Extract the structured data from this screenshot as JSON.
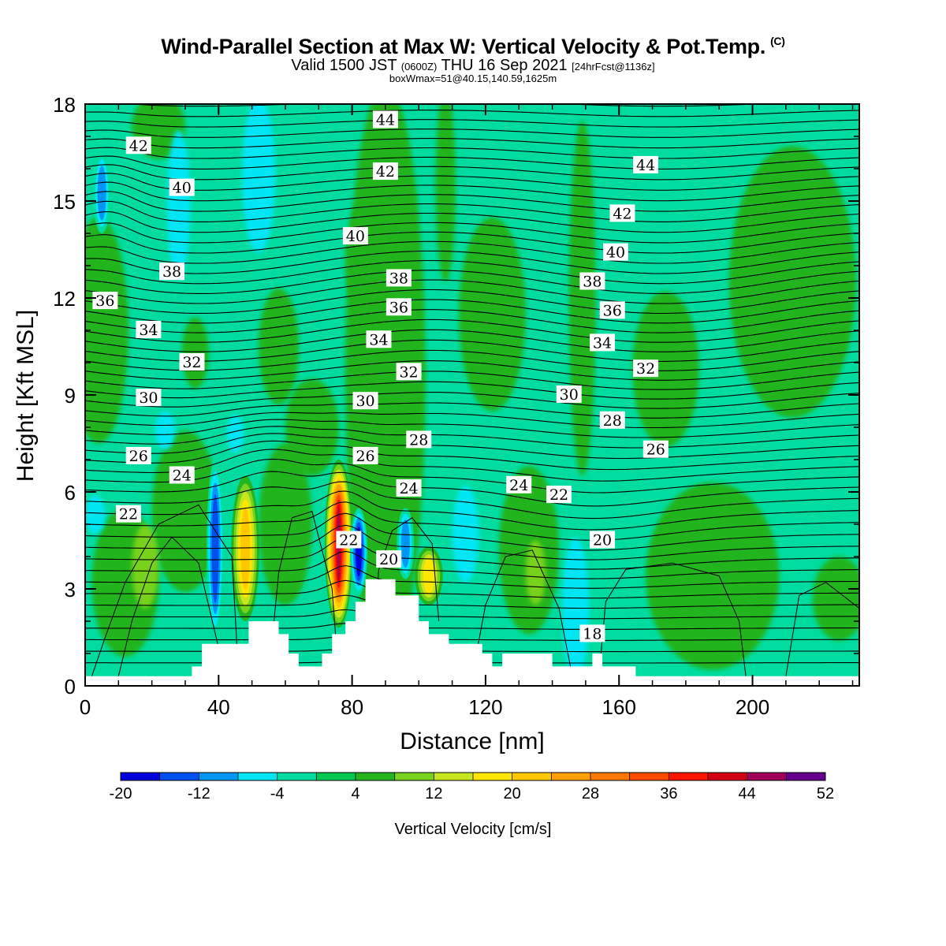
{
  "title": "Wind-Parallel Section at Max W: Vertical Velocity & Pot.Temp.",
  "copyright_mark": "(C)",
  "subtitle": {
    "valid": "Valid 1500 JST",
    "utc": "(0600Z)",
    "date": "THU 16 Sep 2021",
    "forecast": "[24hrFcst@1136z]"
  },
  "box_info": "boxWmax=51@40.15,140.59,1625m",
  "chart_data": {
    "type": "heatmap",
    "xlabel": "Distance [nm]",
    "ylabel": "Height [Kft MSL]",
    "xlim": [
      0,
      232
    ],
    "ylim": [
      0,
      18
    ],
    "x_ticks": [
      "0",
      "40",
      "80",
      "120",
      "160",
      "200"
    ],
    "y_ticks": [
      "0",
      "3",
      "6",
      "9",
      "12",
      "15",
      "18"
    ],
    "colorbar": {
      "label": "Vertical Velocity [cm/s]",
      "tick_labels": [
        "-20",
        "-12",
        "-4",
        "4",
        "12",
        "20",
        "28",
        "36",
        "44",
        "52"
      ],
      "min": -20,
      "max": 52,
      "step": 4,
      "colors": [
        "#0000dd",
        "#0050f0",
        "#0096f5",
        "#00e6f5",
        "#00dca0",
        "#00c850",
        "#23b41e",
        "#78d21e",
        "#c8e61e",
        "#ffe600",
        "#ffc800",
        "#ffa000",
        "#ff7800",
        "#ff4b00",
        "#ff1400",
        "#d20014",
        "#a0005a",
        "#64008c"
      ]
    },
    "background_level": "0 to 4 cm/s (#00dca0)",
    "updrafts": [
      {
        "x": 48,
        "z_low": 2.0,
        "z_high": 6.5,
        "peak_cm_s": 22
      },
      {
        "x": 76,
        "z_low": 1.8,
        "z_high": 7.0,
        "peak_cm_s": 44
      },
      {
        "x": 103,
        "z_low": 2.5,
        "z_high": 4.3,
        "peak_cm_s": 18
      }
    ],
    "downdrafts": [
      {
        "x": 39,
        "z_low": 1.5,
        "z_high": 7.0,
        "min_cm_s": -16
      },
      {
        "x": 82,
        "z_low": 2.8,
        "z_high": 5.5,
        "min_cm_s": -20
      },
      {
        "x": 96,
        "z_low": 3.3,
        "z_high": 5.5,
        "min_cm_s": -12
      },
      {
        "x": 5,
        "z_low": 14.0,
        "z_high": 16.5,
        "min_cm_s": -12
      }
    ],
    "theta_contours": {
      "units": "deg C",
      "levels": [
        18,
        20,
        22,
        24,
        26,
        28,
        30,
        32,
        34,
        36,
        38,
        40,
        42,
        44
      ],
      "labels": [
        {
          "text": "42",
          "x": 16,
          "z": 16.7
        },
        {
          "text": "40",
          "x": 29,
          "z": 15.4
        },
        {
          "text": "38",
          "x": 26,
          "z": 12.8
        },
        {
          "text": "36",
          "x": 6,
          "z": 11.9
        },
        {
          "text": "34",
          "x": 19,
          "z": 11.0
        },
        {
          "text": "32",
          "x": 32,
          "z": 10.0
        },
        {
          "text": "30",
          "x": 19,
          "z": 8.9
        },
        {
          "text": "26",
          "x": 16,
          "z": 7.1
        },
        {
          "text": "24",
          "x": 29,
          "z": 6.5
        },
        {
          "text": "22",
          "x": 13,
          "z": 5.3
        },
        {
          "text": "44",
          "x": 90,
          "z": 17.5
        },
        {
          "text": "42",
          "x": 90,
          "z": 15.9
        },
        {
          "text": "40",
          "x": 81,
          "z": 13.9
        },
        {
          "text": "38",
          "x": 94,
          "z": 12.6
        },
        {
          "text": "36",
          "x": 94,
          "z": 11.7
        },
        {
          "text": "34",
          "x": 88,
          "z": 10.7
        },
        {
          "text": "32",
          "x": 97,
          "z": 9.7
        },
        {
          "text": "30",
          "x": 84,
          "z": 8.8
        },
        {
          "text": "28",
          "x": 100,
          "z": 7.6
        },
        {
          "text": "26",
          "x": 84,
          "z": 7.1
        },
        {
          "text": "24",
          "x": 97,
          "z": 6.1
        },
        {
          "text": "22",
          "x": 79,
          "z": 4.5
        },
        {
          "text": "20",
          "x": 91,
          "z": 3.9
        },
        {
          "text": "44",
          "x": 168,
          "z": 16.1
        },
        {
          "text": "42",
          "x": 161,
          "z": 14.6
        },
        {
          "text": "40",
          "x": 159,
          "z": 13.4
        },
        {
          "text": "38",
          "x": 152,
          "z": 12.5
        },
        {
          "text": "36",
          "x": 158,
          "z": 11.6
        },
        {
          "text": "34",
          "x": 155,
          "z": 10.6
        },
        {
          "text": "32",
          "x": 168,
          "z": 9.8
        },
        {
          "text": "30",
          "x": 145,
          "z": 9.0
        },
        {
          "text": "28",
          "x": 158,
          "z": 8.2
        },
        {
          "text": "26",
          "x": 171,
          "z": 7.3
        },
        {
          "text": "24",
          "x": 130,
          "z": 6.2
        },
        {
          "text": "22",
          "x": 142,
          "z": 5.9
        },
        {
          "text": "20",
          "x": 155,
          "z": 4.5
        },
        {
          "text": "18",
          "x": 152,
          "z": 1.6
        }
      ]
    },
    "terrain": {
      "units": "Kft MSL",
      "x": [
        0,
        32,
        32,
        35,
        35,
        49,
        49,
        58,
        58,
        61,
        61,
        64,
        64,
        71,
        71,
        74,
        74,
        78,
        78,
        81,
        81,
        84,
        84,
        93,
        93,
        100,
        100,
        103,
        103,
        106,
        106,
        109,
        109,
        119,
        119,
        122,
        122,
        125,
        125,
        140,
        140,
        152,
        152,
        155,
        155,
        165,
        165,
        168,
        168,
        232
      ],
      "z": [
        0.3,
        0.3,
        0.6,
        0.6,
        1.3,
        1.3,
        2.0,
        2.0,
        1.6,
        1.6,
        1.0,
        1.0,
        0.6,
        0.6,
        1.0,
        1.0,
        1.6,
        1.6,
        2.0,
        2.0,
        2.6,
        2.6,
        3.3,
        3.3,
        2.8,
        2.8,
        2.0,
        2.0,
        1.6,
        1.6,
        1.6,
        1.6,
        1.3,
        1.3,
        1.0,
        1.0,
        0.6,
        0.6,
        1.0,
        1.0,
        0.6,
        0.6,
        1.0,
        1.0,
        0.6,
        0.6,
        0.3,
        0.3,
        0.3,
        0.3
      ]
    }
  }
}
